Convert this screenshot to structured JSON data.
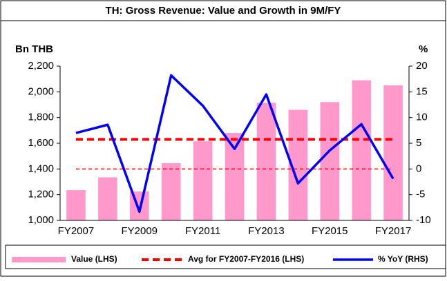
{
  "chart_data": {
    "type": "bar_line",
    "title": "TH: Gross Revenue: Value and Growth in 9M/FY",
    "y_label": "Bn THB",
    "y2_label": "%",
    "categories": [
      "FY2007",
      null,
      "FY2009",
      null,
      "FY2011",
      null,
      "FY2013",
      null,
      "FY2015",
      null,
      "FY2017"
    ],
    "series": [
      {
        "name": "Value (LHS)",
        "type": "bar",
        "color": "#ff99cc",
        "values": [
          1235,
          1335,
          1225,
          1445,
          1615,
          1680,
          1915,
          1860,
          1920,
          2090,
          2050
        ]
      },
      {
        "name": "Avg for FY2007-FY2016 (LHS)",
        "type": "dashed_line",
        "color": "#ff0000",
        "values": [
          1630,
          1630,
          1630,
          1630,
          1630,
          1630,
          1630,
          1630,
          1630,
          1630,
          1630
        ]
      },
      {
        "name": "% YoY (RHS)",
        "type": "line",
        "axis": "y2",
        "color": "#0000ff",
        "values": [
          7.0,
          8.6,
          -8.3,
          18.2,
          12.3,
          3.9,
          14.5,
          -2.8,
          3.6,
          8.7,
          -1.9
        ]
      }
    ],
    "zero_line": {
      "axis": "y2",
      "value": 0,
      "color": "#ff0000"
    },
    "ylim": [
      1000,
      2200
    ],
    "yticks": [
      {
        "value": 1000,
        "label": "1,000"
      },
      {
        "value": 1200,
        "label": "1,200"
      },
      {
        "value": 1400,
        "label": "1,400"
      },
      {
        "value": 1600,
        "label": "1,600"
      },
      {
        "value": 1800,
        "label": "1,800"
      },
      {
        "value": 2000,
        "label": "2,000"
      },
      {
        "value": 2200,
        "label": "2,200"
      }
    ],
    "y2lim": [
      -10,
      20
    ],
    "y2ticks": [
      -10,
      -5,
      0,
      5,
      10,
      15,
      20
    ],
    "legend": "bottom",
    "grid": false
  }
}
